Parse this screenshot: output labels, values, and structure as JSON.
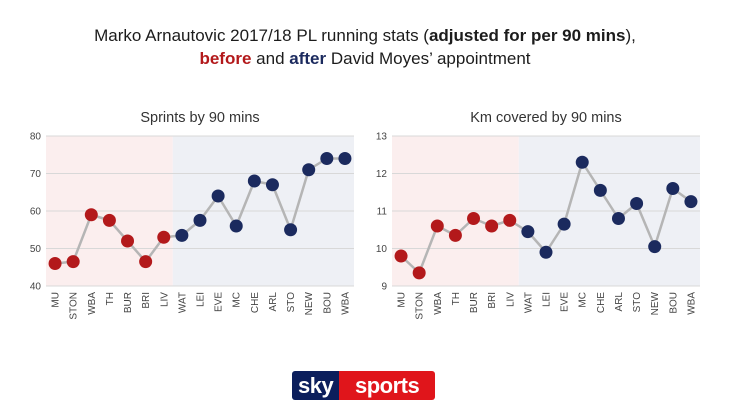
{
  "header": {
    "line1_pre": "Marko Arnautovic 2017/18 PL running stats (",
    "line1_bold": "adjusted for per 90 mins",
    "line1_post": "),",
    "line2_before": "before",
    "line2_mid": " and ",
    "line2_after": "after",
    "line2_post": " David Moyes’ appointment"
  },
  "colors": {
    "before": "#b3191b",
    "after": "#1b2a5e",
    "before_bg": "#fbeeee",
    "after_bg": "#eef0f5",
    "line": "#b5b5b5",
    "grid": "#d8d8d8"
  },
  "chart_data": [
    {
      "type": "line",
      "title": "Sprints by 90 mins",
      "categories": [
        "MU",
        "STON",
        "WBA",
        "TH",
        "BUR",
        "BRI",
        "LIV",
        "WAT",
        "LEI",
        "EVE",
        "MC",
        "CHE",
        "ARL",
        "STO",
        "NEW",
        "BOU",
        "WBA"
      ],
      "values": [
        46,
        46.5,
        59,
        57.5,
        52,
        46.5,
        53,
        53.5,
        57.5,
        64,
        56,
        68,
        67,
        55,
        71,
        74,
        74
      ],
      "before_count": 7,
      "ylim": [
        40,
        80
      ],
      "yticks": [
        40,
        50,
        60,
        70,
        80
      ],
      "xlabel": "",
      "ylabel": "",
      "grid": true
    },
    {
      "type": "line",
      "title": "Km covered by 90 mins",
      "categories": [
        "MU",
        "STON",
        "WBA",
        "TH",
        "BUR",
        "BRI",
        "LIV",
        "WAT",
        "LEI",
        "EVE",
        "MC",
        "CHE",
        "ARL",
        "STO",
        "NEW",
        "BOU",
        "WBA"
      ],
      "values": [
        9.8,
        9.35,
        10.6,
        10.35,
        10.8,
        10.6,
        10.75,
        10.45,
        9.9,
        10.65,
        12.3,
        11.55,
        10.8,
        11.2,
        10.05,
        11.6,
        11.25
      ],
      "before_count": 7,
      "ylim": [
        9,
        13
      ],
      "yticks": [
        9,
        10,
        11,
        12,
        13
      ],
      "xlabel": "",
      "ylabel": "",
      "grid": true
    }
  ],
  "logo": {
    "sky": "sky",
    "sports": "sports"
  }
}
